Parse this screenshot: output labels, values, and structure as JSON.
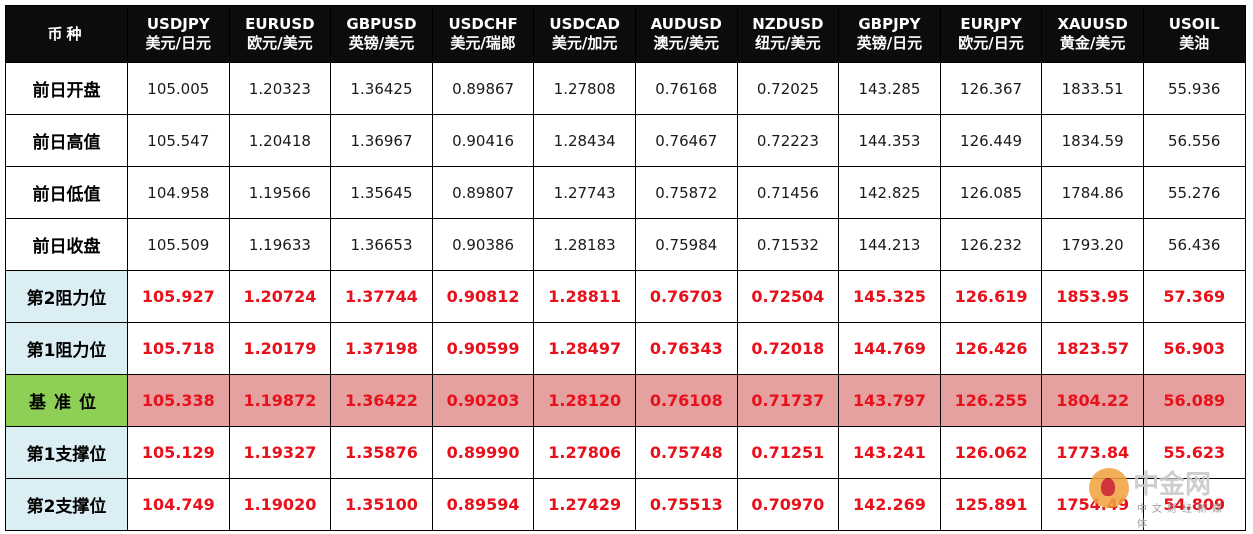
{
  "table": {
    "corner": "币种",
    "currencies": [
      {
        "code": "USDJPY",
        "name": "美元/日元"
      },
      {
        "code": "EURUSD",
        "name": "欧元/美元"
      },
      {
        "code": "GBPUSD",
        "name": "英镑/美元"
      },
      {
        "code": "USDCHF",
        "name": "美元/瑞郎"
      },
      {
        "code": "USDCAD",
        "name": "美元/加元"
      },
      {
        "code": "AUDUSD",
        "name": "澳元/美元"
      },
      {
        "code": "NZDUSD",
        "name": "纽元/美元"
      },
      {
        "code": "GBPJPY",
        "name": "英镑/日元"
      },
      {
        "code": "EURJPY",
        "name": "欧元/日元"
      },
      {
        "code": "XAUUSD",
        "name": "黄金/美元"
      },
      {
        "code": "USOIL",
        "name": "美油"
      }
    ],
    "rows": [
      {
        "label": "前日开盘",
        "values": [
          "105.005",
          "1.20323",
          "1.36425",
          "0.89867",
          "1.27808",
          "0.76168",
          "0.72025",
          "143.285",
          "126.367",
          "1833.51",
          "55.936"
        ]
      },
      {
        "label": "前日高值",
        "values": [
          "105.547",
          "1.20418",
          "1.36967",
          "0.90416",
          "1.28434",
          "0.76467",
          "0.72223",
          "144.353",
          "126.449",
          "1834.59",
          "56.556"
        ]
      },
      {
        "label": "前日低值",
        "values": [
          "104.958",
          "1.19566",
          "1.35645",
          "0.89807",
          "1.27743",
          "0.75872",
          "0.71456",
          "142.825",
          "126.085",
          "1784.86",
          "55.276"
        ]
      },
      {
        "label": "前日收盘",
        "values": [
          "105.509",
          "1.19633",
          "1.36653",
          "0.90386",
          "1.28183",
          "0.75984",
          "0.71532",
          "144.213",
          "126.232",
          "1793.20",
          "56.436"
        ]
      },
      {
        "label": "第2阻力位",
        "values": [
          "105.927",
          "1.20724",
          "1.37744",
          "0.90812",
          "1.28811",
          "0.76703",
          "0.72504",
          "145.325",
          "126.619",
          "1853.95",
          "57.369"
        ]
      },
      {
        "label": "第1阻力位",
        "values": [
          "105.718",
          "1.20179",
          "1.37198",
          "0.90599",
          "1.28497",
          "0.76343",
          "0.72018",
          "144.769",
          "126.426",
          "1823.57",
          "56.903"
        ]
      },
      {
        "label": "基准位",
        "values": [
          "105.338",
          "1.19872",
          "1.36422",
          "0.90203",
          "1.28120",
          "0.76108",
          "0.71737",
          "143.797",
          "126.255",
          "1804.22",
          "56.089"
        ]
      },
      {
        "label": "第1支撑位",
        "values": [
          "105.129",
          "1.19327",
          "1.35876",
          "0.89990",
          "1.27806",
          "0.75748",
          "0.71251",
          "143.241",
          "126.062",
          "1773.84",
          "55.623"
        ]
      },
      {
        "label": "第2支撑位",
        "values": [
          "104.749",
          "1.19020",
          "1.35100",
          "0.89594",
          "1.27429",
          "0.75513",
          "0.70970",
          "142.269",
          "125.891",
          "1754.49",
          "54.809"
        ]
      }
    ]
  },
  "watermark": {
    "brand": "中金网",
    "sub": "中文财经新媒体"
  },
  "colors": {
    "header_bg": "#0c0c0c",
    "level_text": "#e8101a",
    "level_label_bg": "#dbeef4",
    "pivot_bg": "#e5a0a0",
    "pivot_label_bg": "#8ecf55"
  }
}
